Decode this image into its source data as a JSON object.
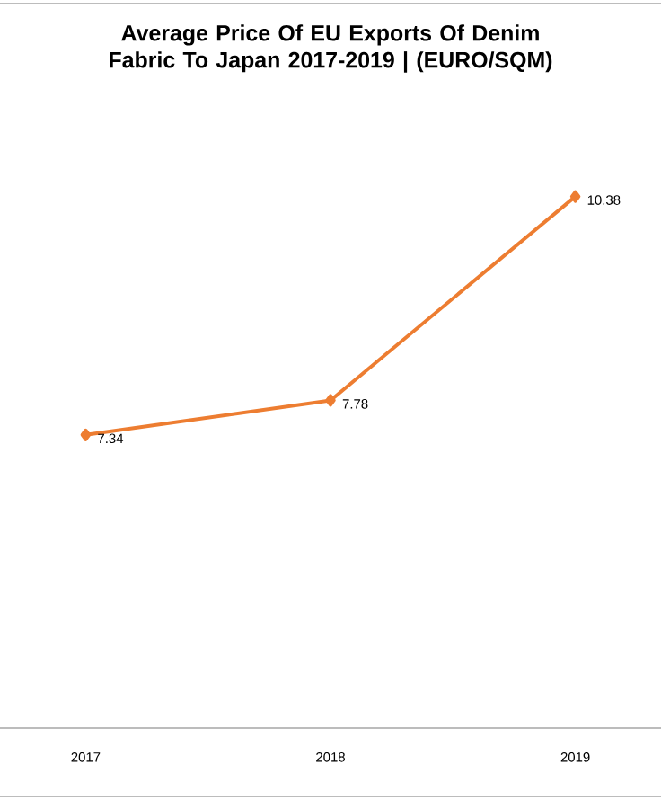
{
  "chart_data": {
    "type": "line",
    "title": "Average Price Of EU Exports Of Denim Fabric To Japan 2017-2019 | (EURO/SQM)",
    "categories": [
      "2017",
      "2018",
      "2019"
    ],
    "data_labels": true,
    "series": [
      {
        "color": "#ed7d31",
        "values": [
          7.34,
          7.78,
          10.38
        ]
      }
    ],
    "marker": "diamond"
  }
}
